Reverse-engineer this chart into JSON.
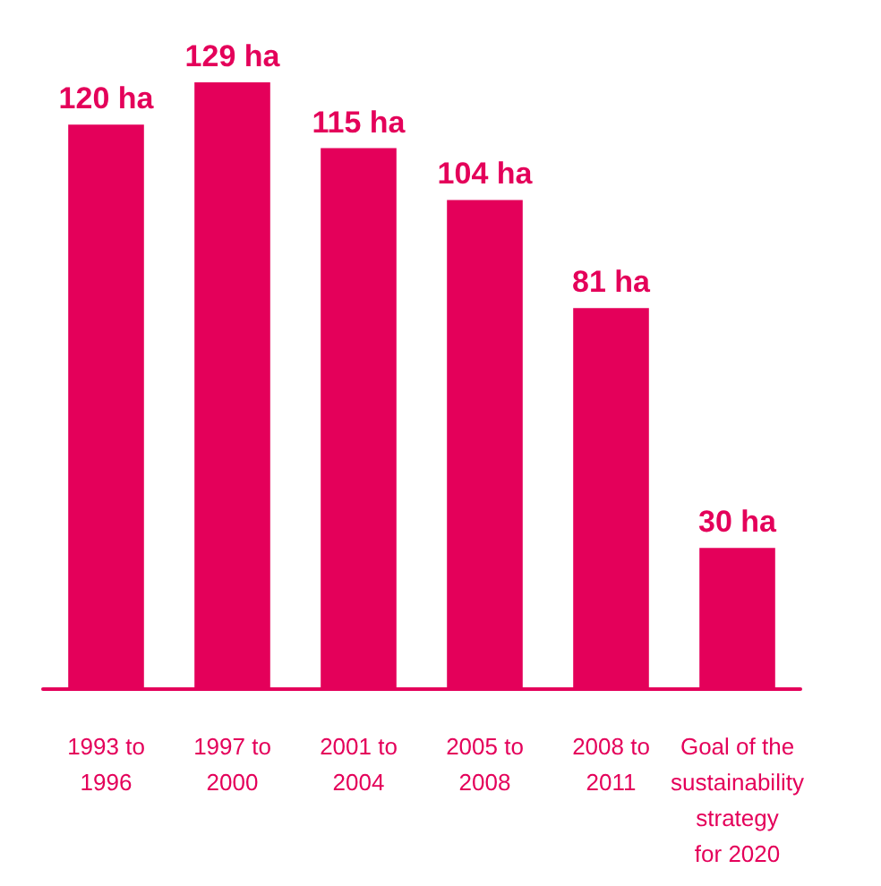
{
  "chart_data": {
    "type": "bar",
    "categories": [
      "1993 to 1996",
      "1997 to 2000",
      "2001 to 2004",
      "2005 to 2008",
      "2008 to 2011",
      "Goal of the sustainability strategy for 2020"
    ],
    "values": [
      120,
      129,
      115,
      104,
      81,
      30
    ],
    "value_labels": [
      "120 ha",
      "129 ha",
      "115 ha",
      "104 ha",
      "81 ha",
      "30 ha"
    ],
    "color": "#e4005a",
    "tick_labels": "x"
  }
}
